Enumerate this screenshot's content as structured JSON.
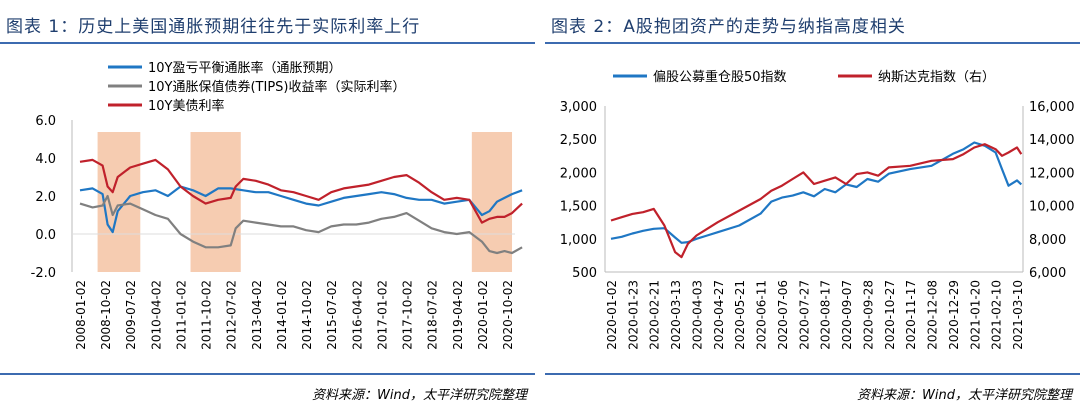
{
  "charts": [
    {
      "title": "图表 1：历史上美国通胀预期往往先于实际利率上行",
      "source": "资料来源：Wind，太平洋研究院整理"
    },
    {
      "title": "图表 2：A股抱团资产的走势与纳指高度相关",
      "source": "资料来源：Wind，太平洋研究院整理"
    }
  ],
  "chart_data": [
    {
      "type": "line",
      "title": "图表 1：历史上美国通胀预期往往先于实际利率上行",
      "ylim": [
        -2.0,
        6.0
      ],
      "yticks": [
        "6.0",
        "4.0",
        "2.0",
        "0.0",
        "-2.0"
      ],
      "x_tick_labels": [
        "2008-01-02",
        "2008-10-02",
        "2009-07-02",
        "2010-04-02",
        "2011-01-02",
        "2011-10-02",
        "2012-07-02",
        "2013-04-02",
        "2014-01-02",
        "2014-10-02",
        "2015-07-02",
        "2016-04-02",
        "2017-01-02",
        "2017-10-02",
        "2018-07-02",
        "2019-04-02",
        "2020-01-02",
        "2020-10-02"
      ],
      "legend": [
        "10Y盈亏平衡通胀率（通胀预期）",
        "10Y通胀保值债券(TIPS)收益率（实际利率）",
        "10Y美债利率"
      ],
      "shaded_ranges": [
        [
          0.7,
          2.4
        ],
        [
          4.4,
          6.4
        ],
        [
          15.6,
          17.2
        ]
      ],
      "series": [
        {
          "name": "10Y盈亏平衡通胀率（通胀预期）",
          "color": "#1f77c4",
          "x": [
            0,
            0.5,
            0.9,
            1.1,
            1.3,
            1.5,
            2,
            2.5,
            3,
            3.5,
            4,
            4.5,
            5,
            5.5,
            6,
            6.5,
            7,
            7.5,
            8,
            8.5,
            9,
            9.5,
            10,
            10.5,
            11,
            11.5,
            12,
            12.5,
            13,
            13.5,
            14,
            14.5,
            15,
            15.5,
            16,
            16.3,
            16.6,
            16.9,
            17.2,
            17.6
          ],
          "values": [
            2.3,
            2.4,
            2.1,
            0.5,
            0.1,
            1.2,
            2.0,
            2.2,
            2.3,
            2.0,
            2.5,
            2.3,
            2.0,
            2.4,
            2.4,
            2.3,
            2.2,
            2.2,
            2.0,
            1.8,
            1.6,
            1.5,
            1.7,
            1.9,
            2.0,
            2.1,
            2.2,
            2.1,
            1.9,
            1.8,
            1.8,
            1.6,
            1.7,
            1.8,
            1.0,
            1.2,
            1.7,
            1.9,
            2.1,
            2.3
          ]
        },
        {
          "name": "10Y通胀保值债券(TIPS)收益率（实际利率）",
          "color": "#808080",
          "x": [
            0,
            0.5,
            0.9,
            1.1,
            1.3,
            1.5,
            2,
            2.5,
            3,
            3.5,
            4,
            4.5,
            5,
            5.5,
            6,
            6.2,
            6.5,
            7,
            7.5,
            8,
            8.5,
            9,
            9.5,
            10,
            10.5,
            11,
            11.5,
            12,
            12.5,
            13,
            13.5,
            14,
            14.5,
            15,
            15.5,
            16,
            16.3,
            16.6,
            16.9,
            17.2,
            17.6
          ],
          "values": [
            1.6,
            1.4,
            1.5,
            2.0,
            1.0,
            1.5,
            1.6,
            1.3,
            1.0,
            0.8,
            0.0,
            -0.4,
            -0.7,
            -0.7,
            -0.6,
            0.3,
            0.7,
            0.6,
            0.5,
            0.4,
            0.4,
            0.2,
            0.1,
            0.4,
            0.5,
            0.5,
            0.6,
            0.8,
            0.9,
            1.1,
            0.7,
            0.3,
            0.1,
            0.0,
            0.1,
            -0.4,
            -0.9,
            -1.0,
            -0.9,
            -1.0,
            -0.7
          ]
        },
        {
          "name": "10Y美债利率",
          "color": "#c0212b",
          "x": [
            0,
            0.5,
            0.9,
            1.1,
            1.3,
            1.5,
            2,
            2.5,
            3,
            3.5,
            4,
            4.5,
            5,
            5.5,
            6,
            6.2,
            6.5,
            7,
            7.5,
            8,
            8.5,
            9,
            9.5,
            10,
            10.5,
            11,
            11.5,
            12,
            12.5,
            13,
            13.5,
            14,
            14.5,
            15,
            15.5,
            16,
            16.3,
            16.6,
            16.9,
            17.2,
            17.6
          ],
          "values": [
            3.8,
            3.9,
            3.6,
            2.5,
            2.2,
            3.0,
            3.5,
            3.7,
            3.9,
            3.4,
            2.5,
            2.0,
            1.6,
            1.8,
            1.9,
            2.5,
            2.9,
            2.8,
            2.6,
            2.3,
            2.2,
            2.0,
            1.8,
            2.2,
            2.4,
            2.5,
            2.6,
            2.8,
            3.0,
            3.1,
            2.7,
            2.2,
            1.8,
            1.9,
            1.8,
            0.6,
            0.8,
            0.9,
            0.9,
            1.1,
            1.6
          ]
        }
      ]
    },
    {
      "type": "line",
      "title": "图表 2：A股抱团资产的走势与纳指高度相关",
      "ylim_left": [
        500,
        3000
      ],
      "ylim_right": [
        6000,
        16000
      ],
      "yticks_left": [
        "3,000",
        "2,500",
        "2,000",
        "1,500",
        "1,000",
        "500"
      ],
      "yticks_right": [
        "16,000",
        "14,000",
        "12,000",
        "10,000",
        "8,000",
        "6,000"
      ],
      "x_tick_labels": [
        "2020-01-02",
        "2020-01-23",
        "2020-02-21",
        "2020-03-13",
        "2020-04-03",
        "2020-04-27",
        "2020-05-21",
        "2020-06-11",
        "2020-07-06",
        "2020-07-27",
        "2020-08-17",
        "2020-09-07",
        "2020-09-28",
        "2020-10-27",
        "2020-11-17",
        "2020-12-08",
        "2020-12-29",
        "2021-01-20",
        "2021-02-10",
        "2021-03-10"
      ],
      "legend": [
        "偏股公募重仓股50指数",
        "纳斯达克指数（右）"
      ],
      "series": [
        {
          "name": "偏股公募重仓股50指数",
          "axis": "left",
          "color": "#1f77c4",
          "x": [
            0,
            0.5,
            1,
            1.5,
            2,
            2.5,
            3,
            3.3,
            3.6,
            4,
            4.5,
            5,
            6,
            7,
            7.5,
            8,
            8.5,
            9,
            9.5,
            10,
            10.5,
            11,
            11.5,
            12,
            12.5,
            13,
            14,
            15,
            16,
            16.5,
            17,
            17.5,
            18,
            18.3,
            18.6,
            19,
            19.2
          ],
          "values": [
            1000,
            1030,
            1080,
            1120,
            1150,
            1160,
            1020,
            940,
            950,
            1000,
            1050,
            1100,
            1200,
            1380,
            1560,
            1620,
            1650,
            1700,
            1640,
            1750,
            1700,
            1820,
            1780,
            1900,
            1860,
            1980,
            2050,
            2100,
            2280,
            2350,
            2450,
            2400,
            2300,
            2050,
            1800,
            1880,
            1820
          ]
        },
        {
          "name": "纳斯达克指数（右）",
          "axis": "right",
          "color": "#c0212b",
          "x": [
            0,
            0.5,
            1,
            1.5,
            2,
            2.5,
            3,
            3.3,
            3.6,
            4,
            4.5,
            5,
            6,
            7,
            7.5,
            8,
            8.5,
            9,
            9.5,
            10,
            10.5,
            11,
            11.5,
            12,
            12.5,
            13,
            14,
            15,
            16,
            16.5,
            17,
            17.5,
            18,
            18.3,
            18.6,
            19,
            19.2
          ],
          "values": [
            9100,
            9300,
            9500,
            9600,
            9800,
            8800,
            7200,
            6900,
            7700,
            8200,
            8600,
            9000,
            9700,
            10400,
            10900,
            11200,
            11600,
            12000,
            11300,
            11500,
            11700,
            11300,
            11900,
            12000,
            11800,
            12300,
            12400,
            12700,
            12800,
            13100,
            13500,
            13700,
            13400,
            13000,
            13200,
            13500,
            13100
          ]
        }
      ]
    }
  ]
}
